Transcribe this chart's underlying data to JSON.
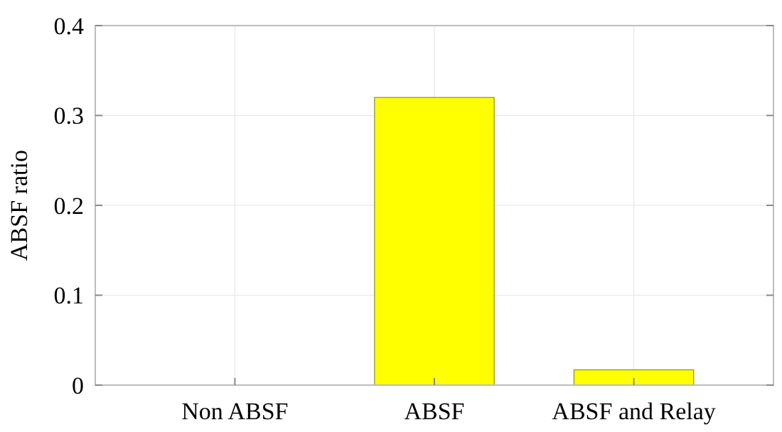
{
  "chart_data": {
    "type": "bar",
    "ylabel": "ABSF ratio",
    "categories": [
      "Non ABSF",
      "ABSF",
      "ABSF and Relay"
    ],
    "values": [
      0,
      0.32,
      0.017
    ],
    "color": "#ffff00",
    "ylim": [
      0,
      0.4
    ],
    "yticks": [
      0,
      0.1,
      0.2,
      0.3,
      0.4
    ],
    "grid": true
  }
}
